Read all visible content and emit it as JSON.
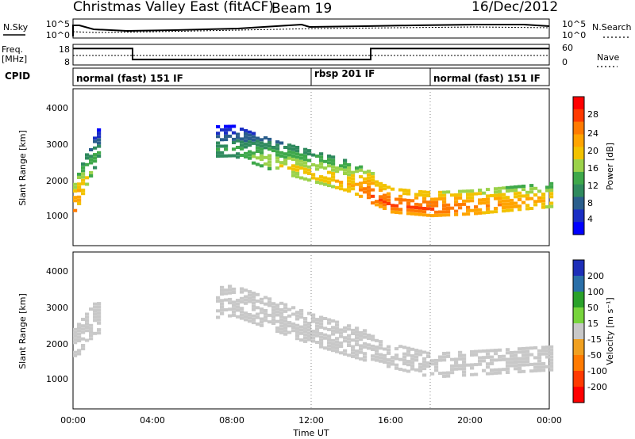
{
  "header": {
    "station": "Christmas Valley East (fitACF)",
    "beam": "Beam 19",
    "date": "16/Dec/2012"
  },
  "noise_panel": {
    "left_label": "N.Sky",
    "left_ticks": [
      "10^5",
      "10^0"
    ],
    "right_ticks": [
      "10^5",
      "10^0"
    ],
    "right_label": "N.Search"
  },
  "freq_panel": {
    "left_label_1": "Freq.",
    "left_label_2": "[MHz]",
    "left_ticks": [
      "18",
      "8"
    ],
    "right_ticks": [
      "60",
      "0"
    ],
    "right_label": "Nave"
  },
  "cpid": {
    "label": "CPID",
    "segments": [
      "normal (fast) 151 IF",
      "rbsp 201 IF",
      "normal (fast) 151 IF"
    ]
  },
  "axes": {
    "ylabel": "Slant Range [km]",
    "xlabel": "Time UT",
    "y_ticks": [
      "4000",
      "3000",
      "2000",
      "1000"
    ],
    "x_ticks": [
      "00:00",
      "04:00",
      "08:00",
      "12:00",
      "16:00",
      "20:00",
      "00:00"
    ]
  },
  "power_scale": {
    "label": "Power [dB]",
    "ticks": [
      "28",
      "24",
      "20",
      "16",
      "12",
      "8",
      "4"
    ],
    "colors": [
      "#ff0000",
      "#ff3a00",
      "#ff7a00",
      "#ffa400",
      "#f2c200",
      "#9bd24a",
      "#3ea84a",
      "#2f8a5e",
      "#2a5e8c",
      "#1a2ec4",
      "#0000ff"
    ]
  },
  "velocity_scale": {
    "label": "Velocity [m s⁻¹]",
    "ticks": [
      "200",
      "100",
      "50",
      "15",
      "-15",
      "-50",
      "-100",
      "-200"
    ],
    "colors": [
      "#1e2fb8",
      "#2a6fa8",
      "#2aa12a",
      "#77d43c",
      "#c8c8c8",
      "#f0a020",
      "#ff7a00",
      "#ff3a00",
      "#ff0000"
    ]
  },
  "chart_data": [
    {
      "type": "heatmap",
      "title": "Christmas Valley East (fitACF)",
      "xlabel": "Time UT",
      "ylabel": "Slant Range [km]",
      "xlim": [
        0,
        24
      ],
      "ylim": [
        180,
        4500
      ],
      "colorbar": {
        "label": "Power [dB]",
        "range": [
          0,
          32
        ]
      },
      "features": [
        {
          "name": "echo band",
          "t": [
            0.0,
            0.5,
            1.2,
            8.0,
            10.0,
            12.0,
            14.0,
            15.0,
            16.0,
            18.0,
            20.0,
            22.0,
            24.0
          ],
          "range_km": [
            1300,
            2000,
            2800,
            2900,
            2500,
            2200,
            1900,
            1600,
            1350,
            1250,
            1300,
            1400,
            1500
          ],
          "power_db": [
            26,
            20,
            12,
            12,
            18,
            20,
            22,
            28,
            28,
            28,
            26,
            24,
            22
          ]
        }
      ]
    },
    {
      "type": "heatmap",
      "xlabel": "Time UT",
      "ylabel": "Slant Range [km]",
      "xlim": [
        0,
        24
      ],
      "ylim": [
        180,
        4500
      ],
      "colorbar": {
        "label": "Velocity [m s⁻¹]",
        "range": [
          -200,
          200
        ]
      },
      "features": [
        {
          "name": "ground scatter",
          "t": [
            0.0,
            1.0,
            8.0,
            12.0,
            15.0,
            18.0,
            24.0
          ],
          "range_km": [
            1800,
            2500,
            3000,
            2200,
            1700,
            1300,
            1500
          ],
          "velocity_ms": [
            0,
            0,
            0,
            0,
            0,
            0,
            0
          ]
        }
      ]
    },
    {
      "type": "line",
      "xlabel": "Time UT",
      "ylabel": "Freq. [MHz]",
      "xlim": [
        0,
        24
      ],
      "series": [
        {
          "x": [
            0.0,
            3.0,
            3.0,
            15.0,
            15.0,
            24.0
          ],
          "y": [
            17,
            17,
            9,
            9,
            17,
            17
          ]
        }
      ]
    }
  ]
}
